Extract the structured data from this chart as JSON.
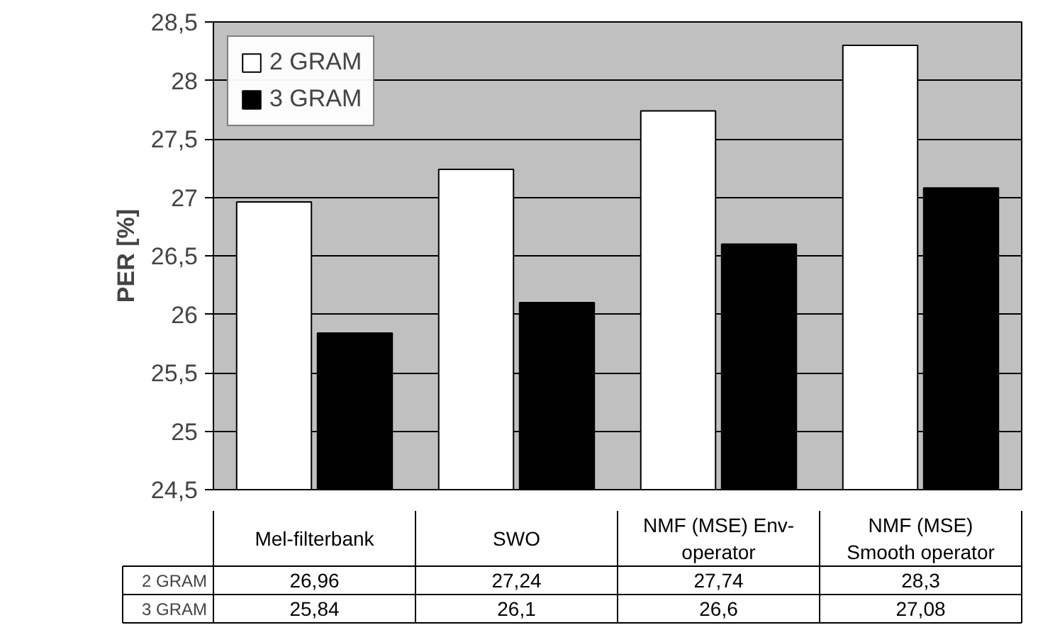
{
  "chart_data": {
    "type": "bar",
    "ylabel": "PER [%]",
    "categories": [
      "Mel-filterbank",
      "SWO",
      "NMF (MSE) Env-operator",
      "NMF (MSE) Smooth operator"
    ],
    "series": [
      {
        "name": "2 GRAM",
        "color": "#ffffff",
        "values": [
          26.96,
          27.24,
          27.74,
          28.3
        ],
        "value_labels": [
          "26,96",
          "27,24",
          "27,74",
          "28,3"
        ]
      },
      {
        "name": "3 GRAM",
        "color": "#000000",
        "values": [
          25.84,
          26.1,
          26.6,
          27.08
        ],
        "value_labels": [
          "25,84",
          "26,1",
          "26,6",
          "27,08"
        ]
      }
    ],
    "ylim": [
      24.5,
      28.5
    ],
    "yticks": [
      {
        "value": 24.5,
        "label": "24,5"
      },
      25,
      {
        "value": 25.5,
        "label": "25,5"
      },
      26,
      {
        "value": 26.5,
        "label": "26,5"
      },
      27,
      {
        "value": 27.5,
        "label": "27,5"
      },
      28,
      {
        "value": 28.5,
        "label": "28,5"
      }
    ],
    "grid": "y",
    "legend": "top left"
  }
}
